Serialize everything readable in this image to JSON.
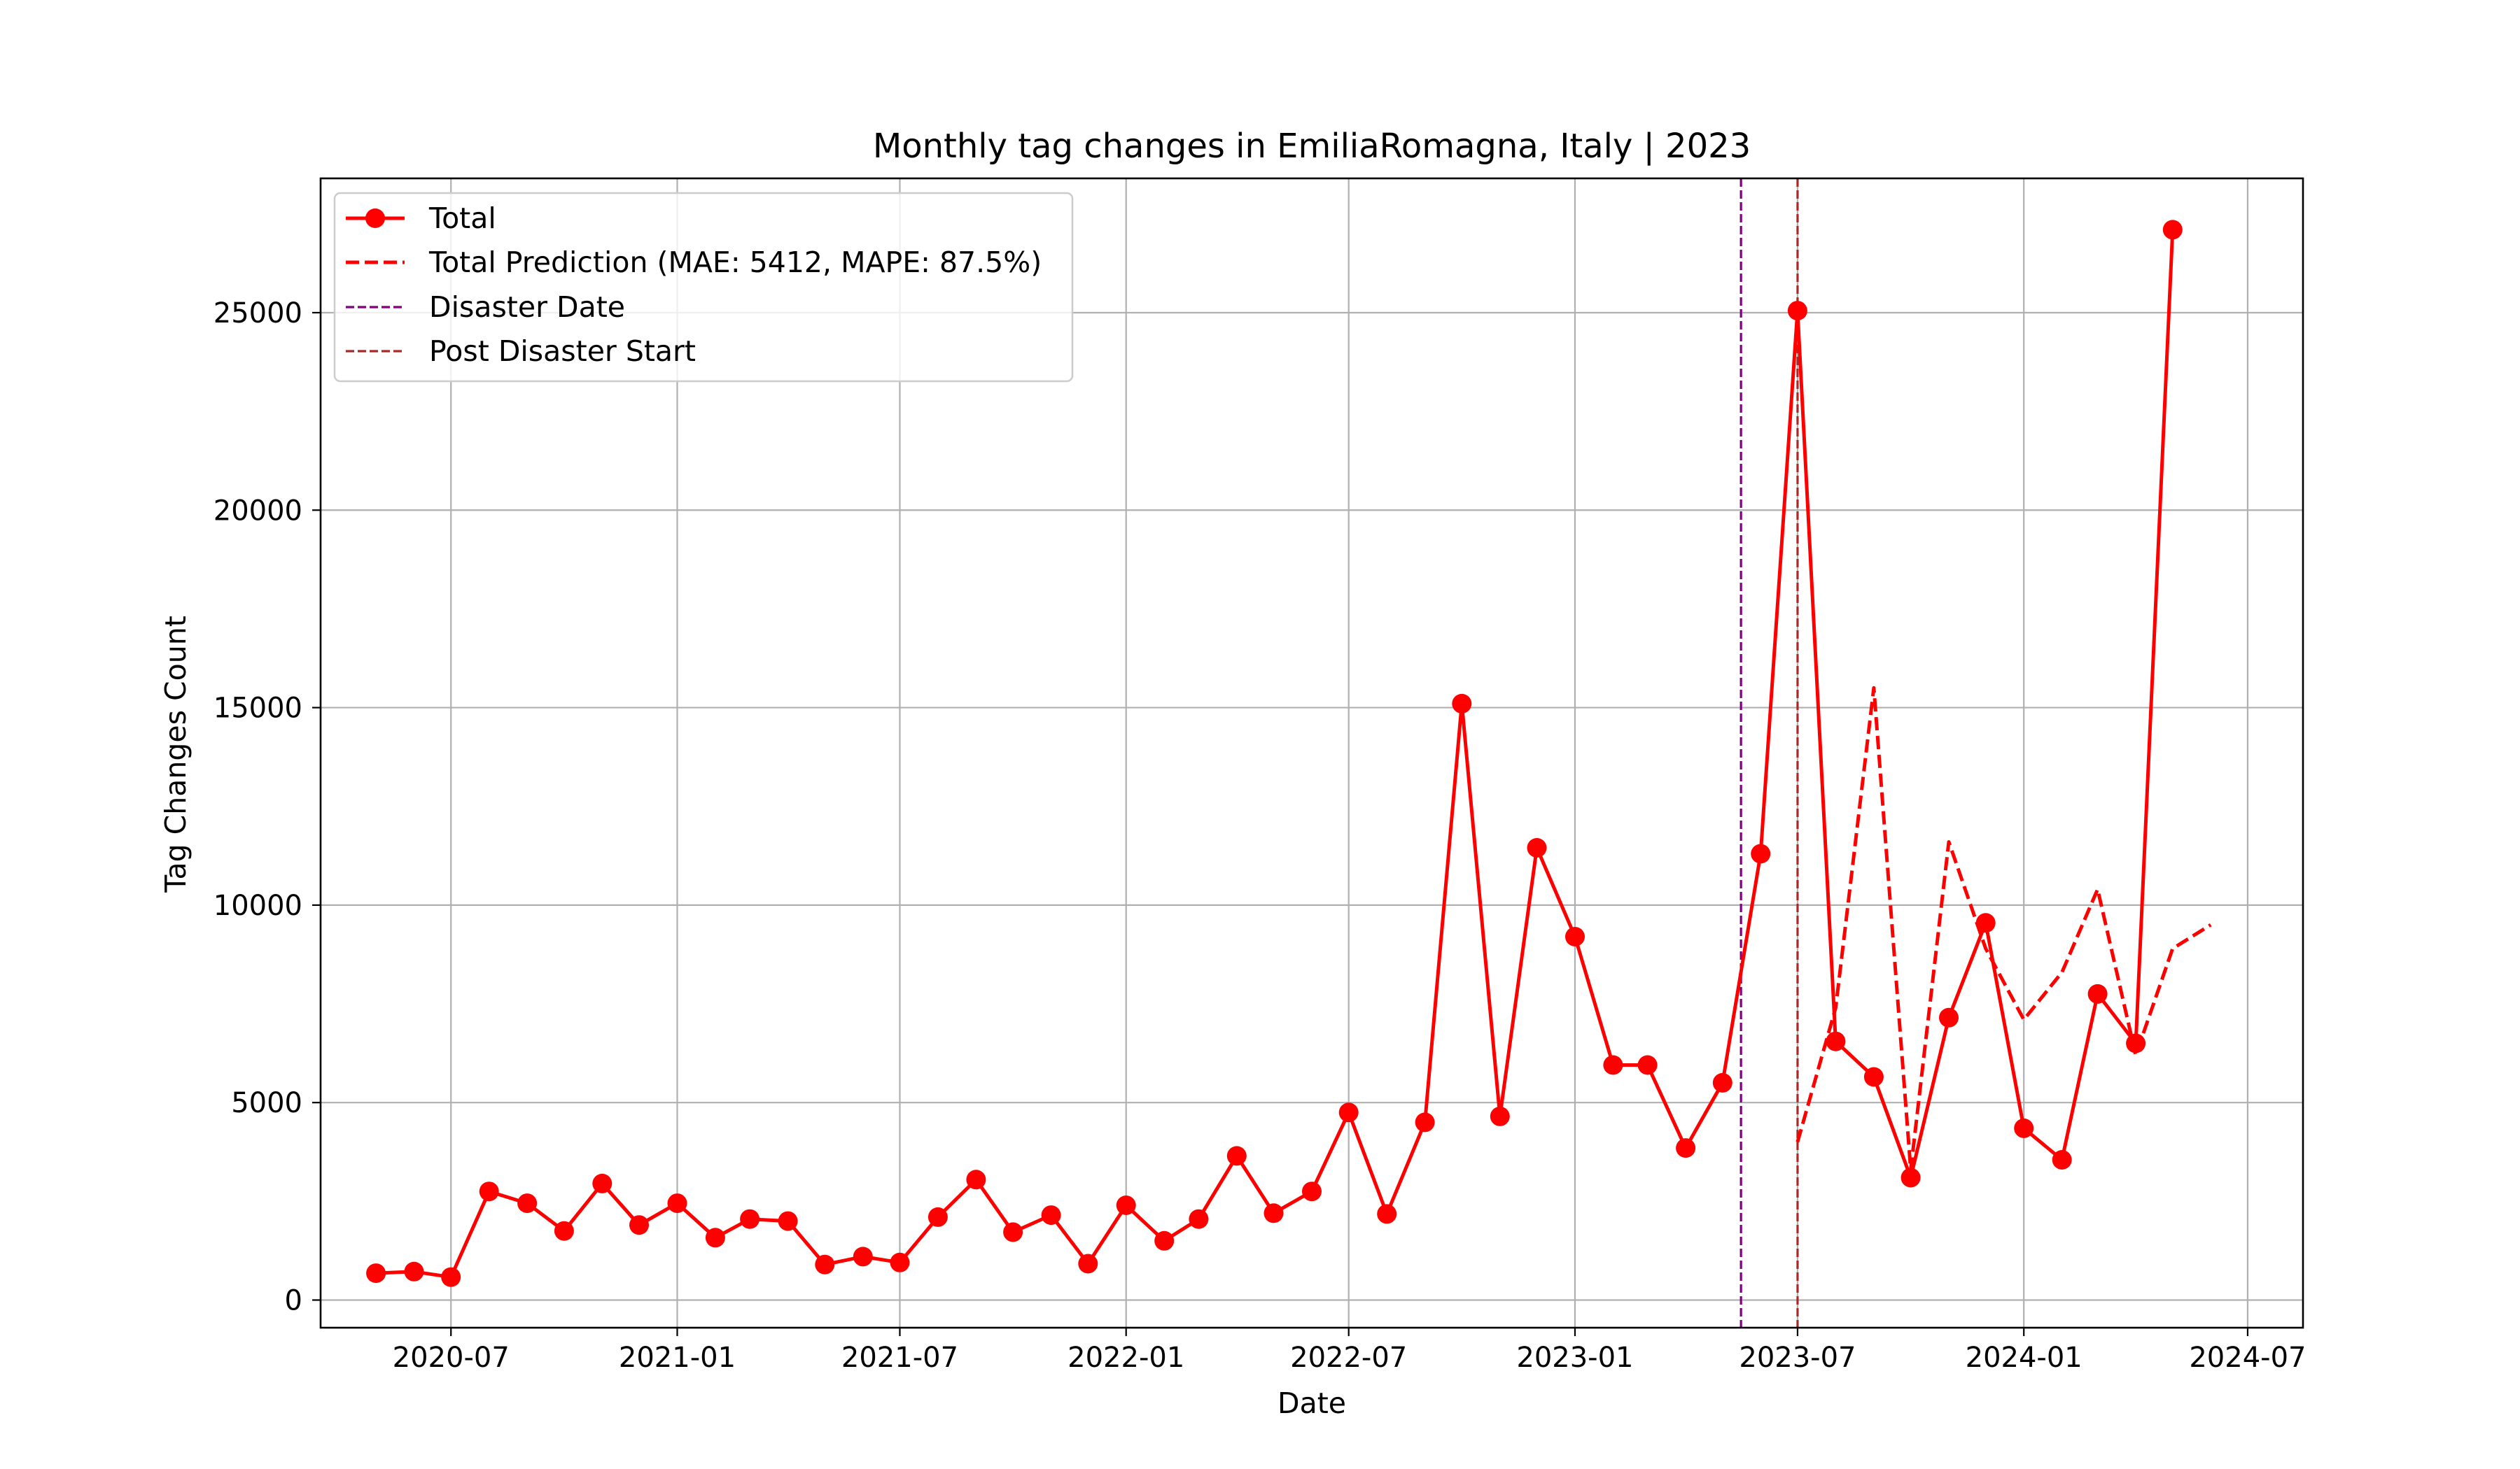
{
  "chart_data": {
    "type": "line",
    "title": "Monthly tag changes in EmiliaRomagna, Italy | 2023",
    "xlabel": "Date",
    "ylabel": "Tag Changes Count",
    "grid": true,
    "legend_position": "top-left",
    "x_ticks": [
      "2020-07",
      "2021-01",
      "2021-07",
      "2022-01",
      "2022-07",
      "2023-01",
      "2023-07",
      "2024-01",
      "2024-07"
    ],
    "y_ticks": [
      0,
      5000,
      10000,
      15000,
      20000,
      25000
    ],
    "xlim": [
      "2020-03-17",
      "2024-08-15"
    ],
    "ylim": [
      -700,
      28400
    ],
    "colors": {
      "total": "#ff0000",
      "prediction": "#ff0000",
      "disaster_date": "#800080",
      "post_disaster_start": "#a52a2a"
    },
    "legend": [
      {
        "key": "total",
        "label": "Total"
      },
      {
        "key": "prediction",
        "label": "Total Prediction (MAE: 5412, MAPE: 87.5%)"
      },
      {
        "key": "disaster_date",
        "label": "Disaster Date"
      },
      {
        "key": "post_disaster_start",
        "label": "Post Disaster Start"
      }
    ],
    "series": [
      {
        "name": "Total",
        "style": "solid-markers",
        "x": [
          "2020-05-01",
          "2020-06-01",
          "2020-07-01",
          "2020-08-01",
          "2020-09-01",
          "2020-10-01",
          "2020-11-01",
          "2020-12-01",
          "2021-01-01",
          "2021-02-01",
          "2021-03-01",
          "2021-04-01",
          "2021-05-01",
          "2021-06-01",
          "2021-07-01",
          "2021-08-01",
          "2021-09-01",
          "2021-10-01",
          "2021-11-01",
          "2021-12-01",
          "2022-01-01",
          "2022-02-01",
          "2022-03-01",
          "2022-04-01",
          "2022-05-01",
          "2022-06-01",
          "2022-07-01",
          "2022-08-01",
          "2022-09-01",
          "2022-10-01",
          "2022-11-01",
          "2022-12-01",
          "2023-01-01",
          "2023-02-01",
          "2023-03-01",
          "2023-04-01",
          "2023-05-01",
          "2023-06-01",
          "2023-07-01",
          "2023-08-01",
          "2023-09-01",
          "2023-10-01",
          "2023-11-01",
          "2023-12-01",
          "2024-01-01",
          "2024-02-01",
          "2024-03-01",
          "2024-04-01",
          "2024-05-01"
        ],
        "values": [
          680,
          720,
          580,
          2750,
          2450,
          1750,
          2950,
          1900,
          2450,
          1580,
          2050,
          2000,
          900,
          1100,
          950,
          2100,
          3050,
          1720,
          2150,
          920,
          2400,
          1500,
          2050,
          3650,
          2200,
          2750,
          4750,
          2180,
          4500,
          15100,
          4650,
          11450,
          9200,
          5950,
          5950,
          3850,
          5500,
          11300,
          25050,
          6550,
          5650,
          3100,
          7150,
          9550,
          4350,
          3550,
          7750,
          6500,
          27100
        ]
      },
      {
        "name": "Total Prediction (MAE: 5412, MAPE: 87.5%)",
        "style": "dashed",
        "x": [
          "2023-07-01",
          "2023-08-01",
          "2023-09-01",
          "2023-10-01",
          "2023-11-01",
          "2023-12-01",
          "2024-01-01",
          "2024-02-01",
          "2024-03-01",
          "2024-04-01",
          "2024-05-01",
          "2024-06-01"
        ],
        "values": [
          4000,
          7400,
          15500,
          3300,
          11600,
          8900,
          7100,
          8300,
          10400,
          6200,
          8900,
          9500
        ]
      }
    ],
    "vlines": [
      {
        "name": "Disaster Date",
        "x": "2023-05-16",
        "color": "#800080"
      },
      {
        "name": "Post Disaster Start",
        "x": "2023-07-01",
        "color": "#a52a2a"
      }
    ]
  }
}
